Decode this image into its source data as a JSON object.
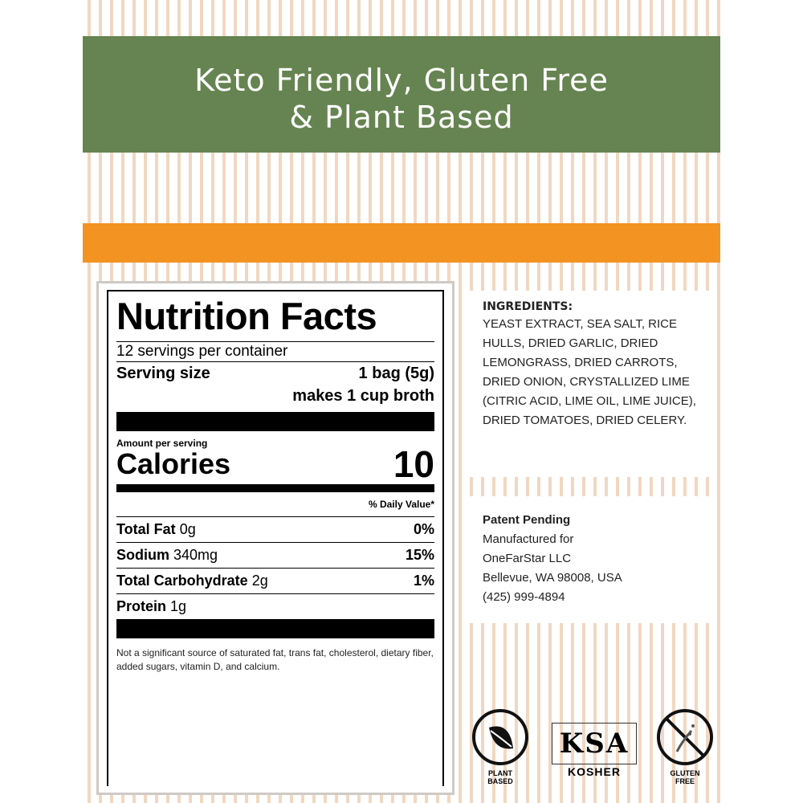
{
  "banner": {
    "line1": "Keto Friendly, Gluten Free",
    "line2": "& Plant Based"
  },
  "nutrition": {
    "title": "Nutrition Facts",
    "servings": "12 servings per container",
    "serving_size_label": "Serving size",
    "serving_size_value": "1 bag (5g)",
    "serving_note": "makes 1 cup broth",
    "amount_per_serving": "Amount per serving",
    "calories_label": "Calories",
    "calories_value": "10",
    "daily_value_header": "% Daily Value*",
    "rows": [
      {
        "name": "Total Fat",
        "amount": "0g",
        "dv": "0%"
      },
      {
        "name": "Sodium",
        "amount": "340mg",
        "dv": "15%"
      },
      {
        "name": "Total Carbohydrate",
        "amount": "2g",
        "dv": "1%"
      },
      {
        "name": "Protein",
        "amount": "1g",
        "dv": ""
      }
    ],
    "footnote": "Not a significant source of saturated fat, trans fat, cholesterol, dietary fiber, added sugars, vitamin D, and calcium."
  },
  "ingredients": {
    "title": "INGREDIENTS:",
    "text": "YEAST EXTRACT, SEA SALT, RICE HULLS, DRIED GARLIC, DRIED LEMONGRASS, DRIED CARROTS, DRIED ONION, CRYSTALLIZED LIME (CITRIC ACID, LIME OIL, LIME JUICE), DRIED TOMATOES, DRIED CELERY."
  },
  "manufacturer": {
    "patent": "Patent Pending",
    "line1": "Manufactured for",
    "line2": "OneFarStar LLC",
    "line3": "Bellevue, WA 98008, USA",
    "line4": "(425) 999-4894"
  },
  "badges": [
    {
      "icon": "leaf-icon",
      "label1": "PLANT",
      "label2": "BASED"
    },
    {
      "icon": "ksa-kosher-logo",
      "logo": "KSA",
      "label1": "KOSHER"
    },
    {
      "icon": "no-gluten-icon",
      "label1": "GLUTEN",
      "label2": "FREE"
    }
  ],
  "colors": {
    "green": "#668451",
    "orange": "#f39321",
    "stripe": "#f1d7c2"
  }
}
